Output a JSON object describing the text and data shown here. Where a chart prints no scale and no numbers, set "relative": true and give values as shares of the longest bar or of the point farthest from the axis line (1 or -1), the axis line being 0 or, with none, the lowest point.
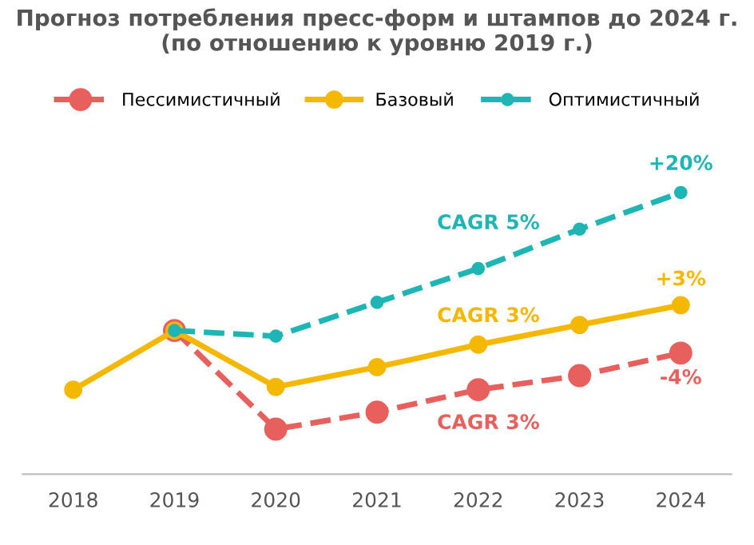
{
  "chart_data": {
    "type": "line",
    "title": "Прогноз потребления пресс-форм и штампов до 2024 г.\n(по отношению к уровню 2019 г.)",
    "categories": [
      "2018",
      "2019",
      "2020",
      "2021",
      "2022",
      "2023",
      "2024"
    ],
    "relative": true,
    "legend": "top",
    "marker": "circle",
    "grid": false,
    "series": [
      {
        "name": "Пессимистичный",
        "color": "#e8605e",
        "line_style": "dashed",
        "values": [
          null,
          0.51,
          0.16,
          0.22,
          0.3,
          0.35,
          0.43
        ]
      },
      {
        "name": "Базовый",
        "color": "#f5b800",
        "line_style": "solid",
        "values": [
          0.3,
          0.51,
          0.31,
          0.38,
          0.46,
          0.53,
          0.6
        ]
      },
      {
        "name": "Оптимистичный",
        "color": "#1fb5b5",
        "line_style": "dashed",
        "values": [
          null,
          0.51,
          0.49,
          0.61,
          0.73,
          0.87,
          1.0
        ]
      }
    ],
    "annotations": [
      "+20%",
      "+3%",
      "-4%",
      "CAGR 5%",
      "CAGR 3%",
      "CAGR 3%"
    ]
  }
}
